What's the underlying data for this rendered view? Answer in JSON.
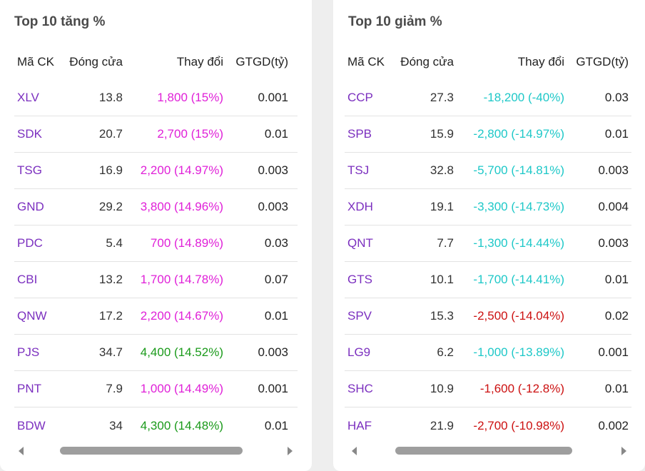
{
  "colors": {
    "symbol": "#7b2fbf",
    "ceiling": "#e020d8",
    "up": "#1a9a1a",
    "floor": "#1ec8c8",
    "down": "#cc1111"
  },
  "gainers": {
    "title": "Top 10 tăng %",
    "headers": {
      "symbol": "Mã CK",
      "close": "Đóng cửa",
      "change": "Thay đổi",
      "value": "GTGD(tỷ)"
    },
    "rows": [
      {
        "symbol": "XLV",
        "close": "13.8",
        "change": "1,800 (15%)",
        "value": "0.001",
        "color": "#e020d8"
      },
      {
        "symbol": "SDK",
        "close": "20.7",
        "change": "2,700 (15%)",
        "value": "0.01",
        "color": "#e020d8"
      },
      {
        "symbol": "TSG",
        "close": "16.9",
        "change": "2,200 (14.97%)",
        "value": "0.003",
        "color": "#e020d8"
      },
      {
        "symbol": "GND",
        "close": "29.2",
        "change": "3,800 (14.96%)",
        "value": "0.003",
        "color": "#e020d8"
      },
      {
        "symbol": "PDC",
        "close": "5.4",
        "change": "700 (14.89%)",
        "value": "0.03",
        "color": "#e020d8"
      },
      {
        "symbol": "CBI",
        "close": "13.2",
        "change": "1,700 (14.78%)",
        "value": "0.07",
        "color": "#e020d8"
      },
      {
        "symbol": "QNW",
        "close": "17.2",
        "change": "2,200 (14.67%)",
        "value": "0.01",
        "color": "#e020d8"
      },
      {
        "symbol": "PJS",
        "close": "34.7",
        "change": "4,400 (14.52%)",
        "value": "0.003",
        "color": "#1a9a1a"
      },
      {
        "symbol": "PNT",
        "close": "7.9",
        "change": "1,000 (14.49%)",
        "value": "0.001",
        "color": "#e020d8"
      },
      {
        "symbol": "BDW",
        "close": "34",
        "change": "4,300 (14.48%)",
        "value": "0.01",
        "color": "#1a9a1a"
      }
    ]
  },
  "losers": {
    "title": "Top 10 giảm %",
    "headers": {
      "symbol": "Mã CK",
      "close": "Đóng cửa",
      "change": "Thay đổi",
      "value": "GTGD(tỷ)"
    },
    "rows": [
      {
        "symbol": "CCP",
        "close": "27.3",
        "change": "-18,200 (-40%)",
        "value": "0.03",
        "color": "#1ec8c8"
      },
      {
        "symbol": "SPB",
        "close": "15.9",
        "change": "-2,800 (-14.97%)",
        "value": "0.01",
        "color": "#1ec8c8"
      },
      {
        "symbol": "TSJ",
        "close": "32.8",
        "change": "-5,700 (-14.81%)",
        "value": "0.003",
        "color": "#1ec8c8"
      },
      {
        "symbol": "XDH",
        "close": "19.1",
        "change": "-3,300 (-14.73%)",
        "value": "0.004",
        "color": "#1ec8c8"
      },
      {
        "symbol": "QNT",
        "close": "7.7",
        "change": "-1,300 (-14.44%)",
        "value": "0.003",
        "color": "#1ec8c8"
      },
      {
        "symbol": "GTS",
        "close": "10.1",
        "change": "-1,700 (-14.41%)",
        "value": "0.01",
        "color": "#1ec8c8"
      },
      {
        "symbol": "SPV",
        "close": "15.3",
        "change": "-2,500 (-14.04%)",
        "value": "0.02",
        "color": "#cc1111"
      },
      {
        "symbol": "LG9",
        "close": "6.2",
        "change": "-1,000 (-13.89%)",
        "value": "0.001",
        "color": "#1ec8c8"
      },
      {
        "symbol": "SHC",
        "close": "10.9",
        "change": "-1,600 (-12.8%)",
        "value": "0.01",
        "color": "#cc1111"
      },
      {
        "symbol": "HAF",
        "close": "21.9",
        "change": "-2,700 (-10.98%)",
        "value": "0.002",
        "color": "#cc1111"
      }
    ]
  }
}
